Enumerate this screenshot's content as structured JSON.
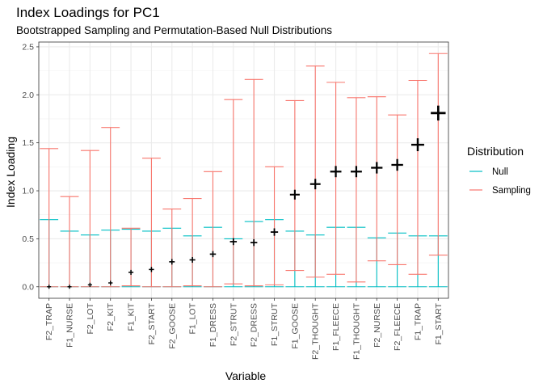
{
  "chart_data": {
    "type": "errorbar",
    "title": "Index Loadings for PC1",
    "subtitle": "Bootstrapped Sampling and Permutation-Based Null Distributions",
    "xlabel": "Variable",
    "ylabel": "Index Loading",
    "ylim": [
      -0.12,
      2.55
    ],
    "yticks": [
      "0.0",
      "0.5",
      "1.0",
      "1.5",
      "2.0",
      "2.5"
    ],
    "grid": true,
    "legend": {
      "title": "Distribution",
      "position": "right",
      "entries": [
        {
          "name": "Null",
          "color": "#00BFC4"
        },
        {
          "name": "Sampling",
          "color": "#F8766D"
        }
      ]
    },
    "categories": [
      "F2_TRAP",
      "F1_NURSE",
      "F2_LOT",
      "F2_KIT",
      "F1_KIT",
      "F2_START",
      "F2_GOOSE",
      "F1_LOT",
      "F1_DRESS",
      "F2_STRUT",
      "F2_DRESS",
      "F1_STRUT",
      "F1_GOOSE",
      "F2_THOUGHT",
      "F1_FLEECE",
      "F1_THOUGHT",
      "F2_NURSE",
      "F2_FLEECE",
      "F1_TRAP",
      "F1_START"
    ],
    "series": [
      {
        "name": "Null",
        "lower": [
          0,
          0,
          0,
          0,
          0,
          0,
          0,
          0,
          0,
          0,
          0,
          0,
          0,
          0,
          0,
          0,
          0,
          0,
          0,
          0
        ],
        "upper": [
          0.7,
          0.58,
          0.54,
          0.59,
          0.6,
          0.58,
          0.61,
          0.53,
          0.62,
          0.5,
          0.68,
          0.7,
          0.58,
          0.54,
          0.62,
          0.62,
          0.51,
          0.56,
          0.53,
          0.53
        ]
      },
      {
        "name": "Sampling",
        "lower": [
          0.0,
          0.0,
          0.0,
          0.0,
          0.01,
          0.0,
          0.0,
          0.01,
          0.0,
          0.03,
          0.01,
          0.02,
          0.17,
          0.1,
          0.13,
          0.05,
          0.27,
          0.23,
          0.13,
          0.33
        ],
        "upper": [
          1.44,
          0.94,
          1.42,
          1.66,
          0.61,
          1.34,
          0.81,
          0.92,
          1.2,
          1.95,
          2.16,
          1.25,
          1.94,
          2.3,
          2.13,
          1.97,
          1.98,
          1.79,
          2.15,
          2.43
        ]
      }
    ],
    "point_estimate": {
      "marker": "+",
      "color": "#000000",
      "values": [
        0.0,
        0.0,
        0.02,
        0.04,
        0.15,
        0.18,
        0.26,
        0.28,
        0.34,
        0.47,
        0.46,
        0.57,
        0.96,
        1.07,
        1.2,
        1.2,
        1.24,
        1.27,
        1.48,
        1.81
      ]
    }
  }
}
